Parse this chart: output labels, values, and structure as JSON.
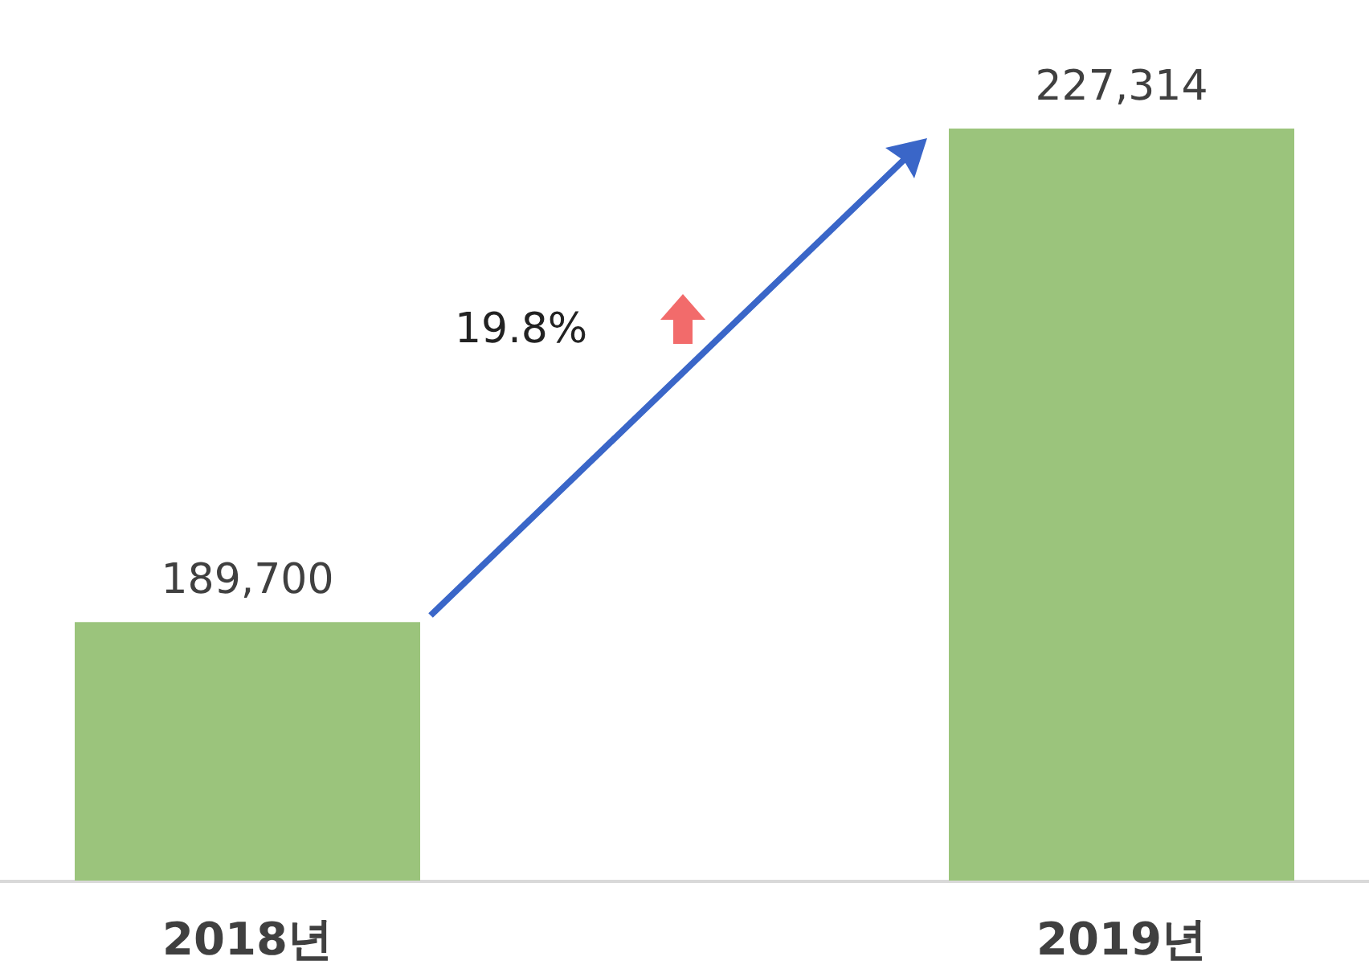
{
  "chart_data": {
    "type": "bar",
    "categories": [
      "2018년",
      "2019년"
    ],
    "values": [
      189700,
      227314
    ],
    "color": "#9bc47c",
    "ylim": [
      170000,
      227314
    ],
    "value_labels": [
      "189,700",
      "227,314"
    ],
    "annotations": [
      "19.8%"
    ]
  }
}
